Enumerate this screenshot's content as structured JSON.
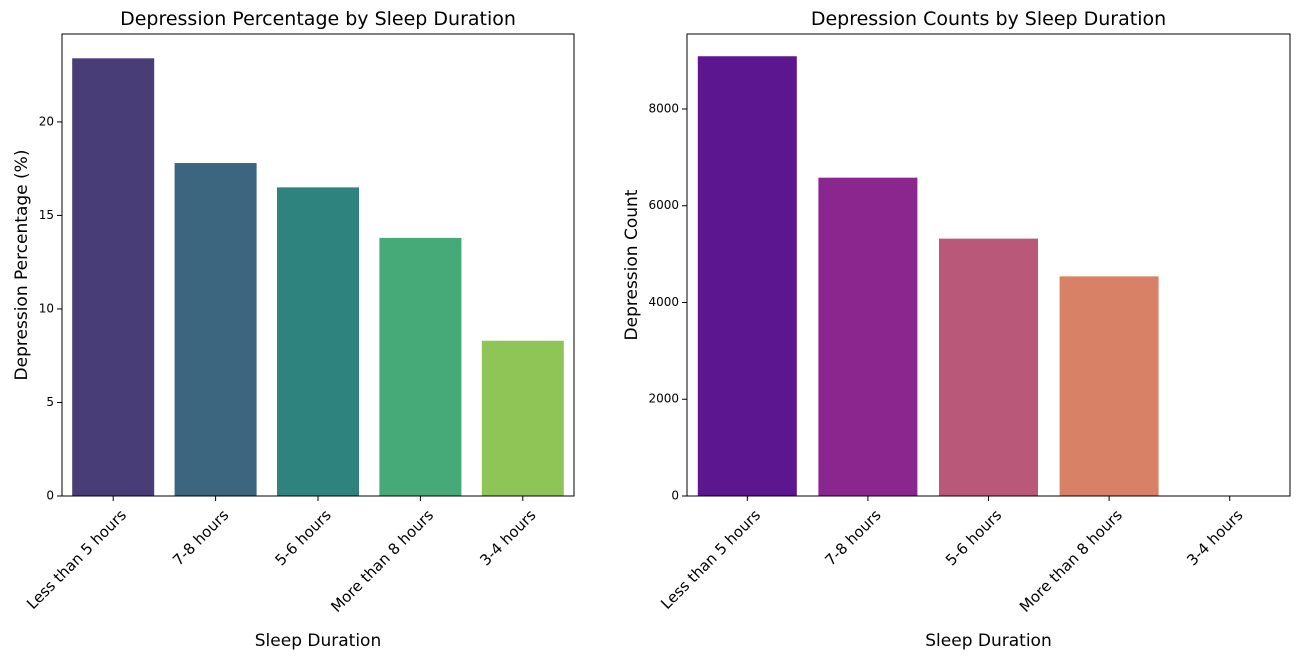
{
  "chart_data": [
    {
      "type": "bar",
      "title": "Depression Percentage by Sleep Duration",
      "xlabel": "Sleep Duration",
      "ylabel": "Depression Percentage (%)",
      "categories": [
        "Less than 5 hours",
        "7-8 hours",
        "5-6 hours",
        "More than 8 hours",
        "3-4 hours"
      ],
      "values": [
        23.4,
        17.8,
        16.5,
        13.8,
        8.3
      ],
      "ylim": [
        0,
        24.7
      ],
      "yticks": [
        0,
        5,
        10,
        15,
        20
      ],
      "colors": [
        "#483d77",
        "#3c6580",
        "#2e837e",
        "#46a978",
        "#8fc556"
      ],
      "grid": false,
      "legend": "none"
    },
    {
      "type": "bar",
      "title": "Depression Counts by Sleep Duration",
      "xlabel": "Sleep Duration",
      "ylabel": "Depression Count",
      "categories": [
        "Less than 5 hours",
        "7-8 hours",
        "5-6 hours",
        "More than 8 hours",
        "3-4 hours"
      ],
      "values": [
        9090,
        6580,
        5320,
        4540,
        0
      ],
      "ylim": [
        0,
        9550
      ],
      "yticks": [
        0,
        2000,
        4000,
        6000,
        8000
      ],
      "colors": [
        "#5c1690",
        "#8a268e",
        "#ba587a",
        "#d88167",
        "#f0c43a"
      ],
      "grid": false,
      "legend": "none"
    }
  ]
}
